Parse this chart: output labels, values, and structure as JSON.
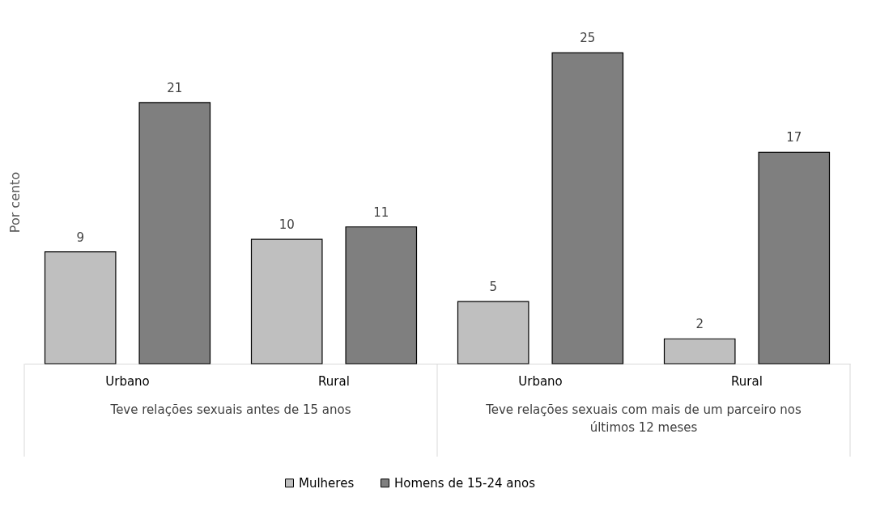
{
  "chart_data": {
    "type": "bar",
    "ylabel": "Por cento",
    "categories": [
      "Urbano",
      "Rural",
      "Urbano",
      "Rural"
    ],
    "series": [
      {
        "name": "Mulheres",
        "color": "#bfbfbf",
        "values": [
          9,
          10,
          5,
          2
        ]
      },
      {
        "name": "Homens de 15-24 anos",
        "color": "#7f7f7f",
        "values": [
          21,
          11,
          25,
          17
        ]
      }
    ],
    "annotations": [
      "Teve relações sexuais antes de 15 anos",
      "Teve relações sexuais com mais de um parceiro nos últimos 12 meses"
    ],
    "data_labels": true,
    "legend": "bottom",
    "grid": false
  }
}
